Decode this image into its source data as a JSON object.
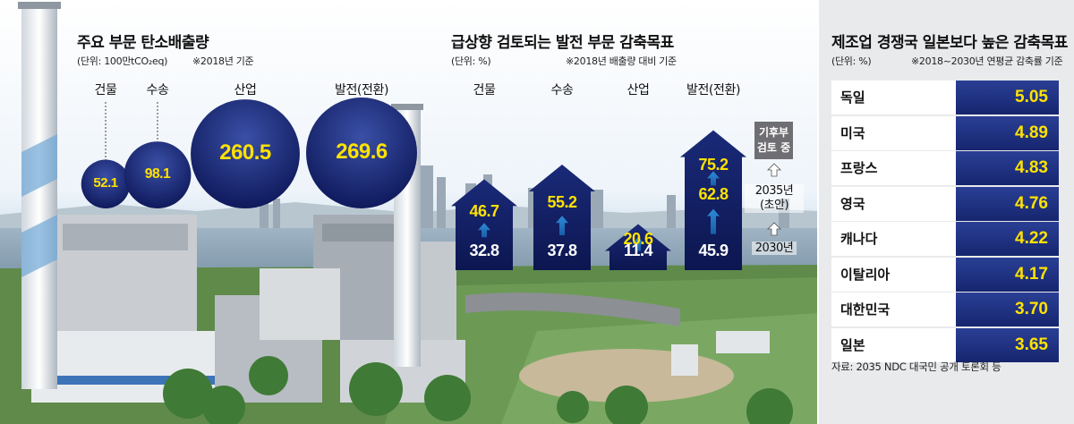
{
  "left": {
    "title": "주요 부문 탄소배출량",
    "unit": "(단위: 100만tCO₂eq)",
    "note": "※2018년 기준"
  },
  "middle": {
    "title": "급상향 검토되는 발전 부문 감축목표",
    "unit": "(단위: %)",
    "note": "※2018년 배출량 대비 기준",
    "side_box": "기후부 검토 중",
    "milestone_2035": "2035년 (초안)",
    "milestone_2030": "2030년"
  },
  "right": {
    "title": "제조업 경쟁국 일본보다 높은 감축목표",
    "unit": "(단위: %)",
    "note": "※2018~2030년 연평균 감축률 기준",
    "source": "자료: 2035 NDC 대국민 공개 토론회 등"
  },
  "colors": {
    "navy": "#16256e",
    "yellow": "#ffe200",
    "panel_bg": "#e9eaec",
    "gray_box": "#6f6f73"
  },
  "chart_data": [
    {
      "type": "bubble",
      "title": "주요 부문 탄소배출량",
      "unit": "100만tCO₂eq",
      "categories": [
        "건물",
        "수송",
        "산업",
        "발전(전환)"
      ],
      "values": [
        52.1,
        98.1,
        260.5,
        269.6
      ],
      "value_labels": [
        "52.1",
        "98.1",
        "260.5",
        "269.6"
      ]
    },
    {
      "type": "bar",
      "title": "급상향 검토되는 발전 부문 감축목표",
      "unit": "%",
      "categories": [
        "건물",
        "수송",
        "산업",
        "발전(전환)"
      ],
      "series": [
        {
          "name": "2030년",
          "values": [
            32.8,
            37.8,
            11.4,
            45.9
          ],
          "value_labels": [
            "32.8",
            "37.8",
            "11.4",
            "45.9"
          ]
        },
        {
          "name": "2035년 (초안)",
          "values": [
            46.7,
            55.2,
            20.6,
            62.8
          ],
          "value_labels": [
            "46.7",
            "55.2",
            "20.6",
            "62.8"
          ]
        },
        {
          "name": "기후부 검토 중",
          "values": [
            null,
            null,
            null,
            75.2
          ],
          "value_labels": [
            "",
            "",
            "",
            "75.2"
          ]
        }
      ]
    },
    {
      "type": "table",
      "title": "제조업 경쟁국 일본보다 높은 감축목표",
      "unit": "%",
      "categories": [
        "독일",
        "미국",
        "프랑스",
        "영국",
        "캐나다",
        "이탈리아",
        "대한민국",
        "일본"
      ],
      "values": [
        5.05,
        4.89,
        4.83,
        4.76,
        4.22,
        4.17,
        3.7,
        3.65
      ],
      "value_labels": [
        "5.05",
        "4.89",
        "4.83",
        "4.76",
        "4.22",
        "4.17",
        "3.70",
        "3.65"
      ]
    }
  ]
}
